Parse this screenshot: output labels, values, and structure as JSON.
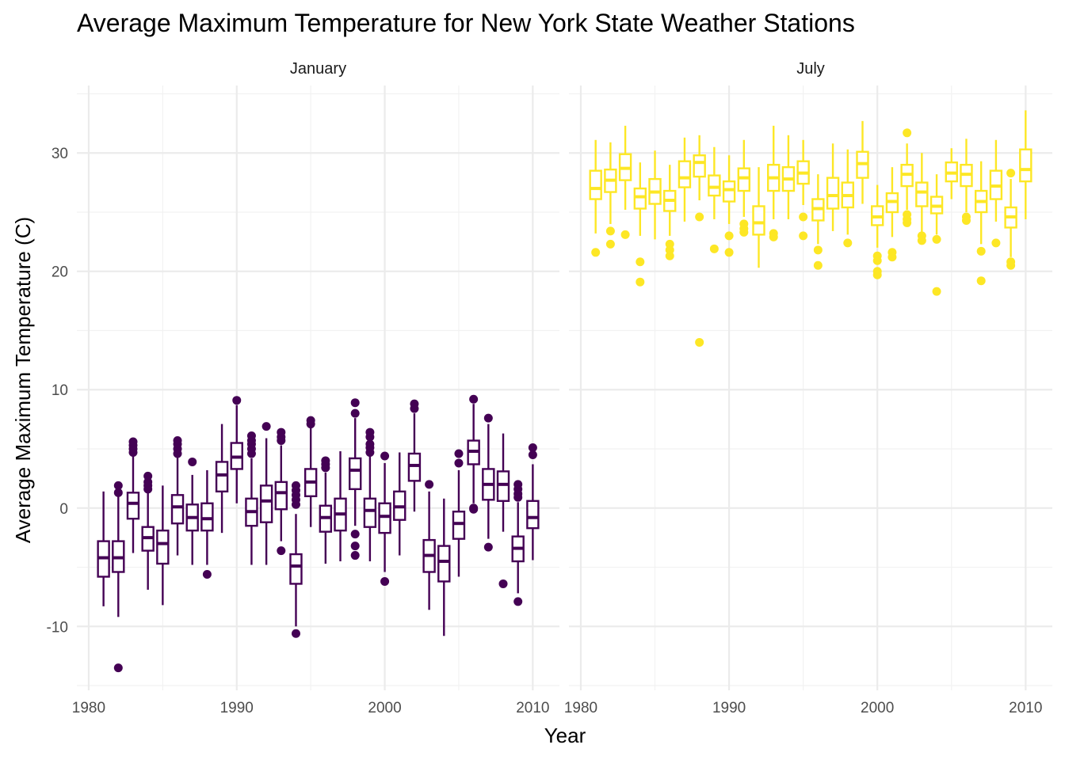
{
  "chart_data": {
    "type": "boxplot",
    "title": "Average Maximum Temperature for New York State Weather Stations",
    "xlabel": "Year",
    "ylabel": "Average Maximum Temperature (C)",
    "xlim": [
      1979.2,
      2011.8
    ],
    "ylim": [
      -15.4,
      35.7
    ],
    "x_ticks": [
      1980,
      1990,
      2000,
      2010
    ],
    "y_ticks": [
      -10,
      0,
      10,
      20,
      30
    ],
    "grid": true,
    "legend": "none",
    "panels": [
      {
        "name": "January",
        "color": "#440154",
        "boxes": [
          {
            "year": 1981,
            "wlo": -8.3,
            "q1": -5.8,
            "med": -4.2,
            "q3": -2.8,
            "whi": 1.4,
            "out": []
          },
          {
            "year": 1982,
            "wlo": -9.2,
            "q1": -5.4,
            "med": -4.2,
            "q3": -2.8,
            "whi": 1.0,
            "out": [
              1.3,
              1.9,
              -13.5
            ]
          },
          {
            "year": 1983,
            "wlo": -3.8,
            "q1": -0.9,
            "med": 0.4,
            "q3": 1.3,
            "whi": 4.4,
            "out": [
              4.7,
              5.0,
              5.3,
              5.6
            ]
          },
          {
            "year": 1984,
            "wlo": -6.9,
            "q1": -3.6,
            "med": -2.5,
            "q3": -1.6,
            "whi": 1.3,
            "out": [
              1.6,
              1.9,
              2.2,
              2.7
            ]
          },
          {
            "year": 1985,
            "wlo": -8.2,
            "q1": -4.7,
            "med": -3.0,
            "q3": -1.9,
            "whi": 1.9,
            "out": []
          },
          {
            "year": 1986,
            "wlo": -4.0,
            "q1": -1.3,
            "med": 0.1,
            "q3": 1.1,
            "whi": 4.3,
            "out": [
              4.6,
              5.0,
              5.4,
              5.7
            ]
          },
          {
            "year": 1987,
            "wlo": -4.8,
            "q1": -1.9,
            "med": -0.8,
            "q3": 0.3,
            "whi": 2.8,
            "out": [
              3.9
            ]
          },
          {
            "year": 1988,
            "wlo": -4.8,
            "q1": -1.9,
            "med": -0.9,
            "q3": 0.4,
            "whi": 3.2,
            "out": [
              -5.6
            ]
          },
          {
            "year": 1989,
            "wlo": -2.1,
            "q1": 1.4,
            "med": 2.8,
            "q3": 3.9,
            "whi": 7.1,
            "out": []
          },
          {
            "year": 1990,
            "wlo": 0.4,
            "q1": 3.3,
            "med": 4.3,
            "q3": 5.5,
            "whi": 8.7,
            "out": [
              9.1
            ]
          },
          {
            "year": 1991,
            "wlo": -4.8,
            "q1": -1.5,
            "med": -0.3,
            "q3": 0.8,
            "whi": 4.2,
            "out": [
              4.6,
              5.0,
              5.4,
              5.7,
              6.1
            ]
          },
          {
            "year": 1992,
            "wlo": -4.8,
            "q1": -1.2,
            "med": 0.6,
            "q3": 1.9,
            "whi": 5.9,
            "out": [
              6.9
            ]
          },
          {
            "year": 1993,
            "wlo": -2.8,
            "q1": -0.1,
            "med": 1.3,
            "q3": 2.2,
            "whi": 5.3,
            "out": [
              5.7,
              6.0,
              6.4,
              -3.6
            ]
          },
          {
            "year": 1994,
            "wlo": -10.0,
            "q1": -6.4,
            "med": -4.9,
            "q3": -3.9,
            "whi": -0.5,
            "out": [
              0.3,
              0.7,
              1.1,
              1.5,
              1.9,
              -10.6
            ]
          },
          {
            "year": 1995,
            "wlo": -1.6,
            "q1": 1.0,
            "med": 2.2,
            "q3": 3.3,
            "whi": 6.8,
            "out": [
              7.1,
              7.4
            ]
          },
          {
            "year": 1996,
            "wlo": -4.7,
            "q1": -2.0,
            "med": -0.8,
            "q3": 0.2,
            "whi": 3.0,
            "out": [
              3.4,
              3.7,
              4.0
            ]
          },
          {
            "year": 1997,
            "wlo": -4.5,
            "q1": -1.9,
            "med": -0.5,
            "q3": 0.8,
            "whi": 4.8,
            "out": []
          },
          {
            "year": 1998,
            "wlo": -1.5,
            "q1": 1.6,
            "med": 3.2,
            "q3": 4.2,
            "whi": 7.6,
            "out": [
              8.0,
              8.9,
              -2.2,
              -3.2,
              -4.0
            ]
          },
          {
            "year": 1999,
            "wlo": -4.5,
            "q1": -1.6,
            "med": -0.2,
            "q3": 0.8,
            "whi": 4.4,
            "out": [
              4.7,
              5.1,
              5.4,
              6.0,
              6.4
            ]
          },
          {
            "year": 2000,
            "wlo": -5.4,
            "q1": -2.1,
            "med": -0.7,
            "q3": 0.4,
            "whi": 3.8,
            "out": [
              4.4,
              -6.2
            ]
          },
          {
            "year": 2001,
            "wlo": -4.0,
            "q1": -1.0,
            "med": 0.1,
            "q3": 1.4,
            "whi": 4.7,
            "out": []
          },
          {
            "year": 2002,
            "wlo": -0.3,
            "q1": 2.3,
            "med": 3.6,
            "q3": 4.6,
            "whi": 8.0,
            "out": [
              8.4,
              8.8
            ]
          },
          {
            "year": 2003,
            "wlo": -8.6,
            "q1": -5.4,
            "med": -4.0,
            "q3": -2.7,
            "whi": 1.4,
            "out": [
              2.0
            ]
          },
          {
            "year": 2004,
            "wlo": -10.8,
            "q1": -6.2,
            "med": -4.5,
            "q3": -3.2,
            "whi": 0.8,
            "out": []
          },
          {
            "year": 2005,
            "wlo": -5.8,
            "q1": -2.6,
            "med": -1.3,
            "q3": -0.3,
            "whi": 3.2,
            "out": [
              3.8,
              4.6
            ]
          },
          {
            "year": 2006,
            "wlo": 0.4,
            "q1": 3.7,
            "med": 4.8,
            "q3": 5.7,
            "whi": 8.8,
            "out": [
              9.2,
              0.0,
              -0.1
            ]
          },
          {
            "year": 2007,
            "wlo": -2.6,
            "q1": 0.7,
            "med": 2.0,
            "q3": 3.3,
            "whi": 7.1,
            "out": [
              7.6,
              -3.3
            ]
          },
          {
            "year": 2008,
            "wlo": -2.0,
            "q1": 0.6,
            "med": 2.0,
            "q3": 3.1,
            "whi": 6.3,
            "out": [
              -6.4
            ]
          },
          {
            "year": 2009,
            "wlo": -7.2,
            "q1": -4.5,
            "med": -3.4,
            "q3": -2.4,
            "whi": 0.5,
            "out": [
              0.9,
              1.2,
              1.6,
              2.0,
              -7.9
            ]
          },
          {
            "year": 2010,
            "wlo": -4.4,
            "q1": -1.7,
            "med": -0.8,
            "q3": 0.6,
            "whi": 3.7,
            "out": [
              4.5,
              5.1
            ]
          }
        ]
      },
      {
        "name": "July",
        "color": "#fde725",
        "boxes": [
          {
            "year": 1981,
            "wlo": 23.2,
            "q1": 26.1,
            "med": 27.0,
            "q3": 28.5,
            "whi": 31.1,
            "out": [
              21.6
            ]
          },
          {
            "year": 1982,
            "wlo": 24.0,
            "q1": 26.7,
            "med": 27.7,
            "q3": 28.6,
            "whi": 30.9,
            "out": [
              23.4,
              22.3
            ]
          },
          {
            "year": 1983,
            "wlo": 25.2,
            "q1": 27.7,
            "med": 28.7,
            "q3": 29.9,
            "whi": 32.3,
            "out": [
              23.1
            ]
          },
          {
            "year": 1984,
            "wlo": 23.0,
            "q1": 25.3,
            "med": 26.3,
            "q3": 27.0,
            "whi": 29.2,
            "out": [
              20.8,
              19.1
            ]
          },
          {
            "year": 1985,
            "wlo": 22.7,
            "q1": 25.7,
            "med": 26.7,
            "q3": 27.8,
            "whi": 30.2,
            "out": []
          },
          {
            "year": 1986,
            "wlo": 23.0,
            "q1": 25.1,
            "med": 26.0,
            "q3": 26.8,
            "whi": 29.0,
            "out": [
              22.3,
              21.8,
              21.3
            ]
          },
          {
            "year": 1987,
            "wlo": 24.2,
            "q1": 27.1,
            "med": 27.9,
            "q3": 29.3,
            "whi": 31.3,
            "out": []
          },
          {
            "year": 1988,
            "wlo": 26.0,
            "q1": 28.0,
            "med": 29.2,
            "q3": 29.8,
            "whi": 31.5,
            "out": [
              24.6,
              14.0
            ]
          },
          {
            "year": 1989,
            "wlo": 24.4,
            "q1": 26.4,
            "med": 27.1,
            "q3": 28.1,
            "whi": 30.5,
            "out": [
              21.9
            ]
          },
          {
            "year": 1990,
            "wlo": 24.0,
            "q1": 25.9,
            "med": 26.9,
            "q3": 27.6,
            "whi": 29.8,
            "out": [
              23.0,
              21.6
            ]
          },
          {
            "year": 1991,
            "wlo": 24.6,
            "q1": 26.8,
            "med": 27.9,
            "q3": 28.7,
            "whi": 31.1,
            "out": [
              24.0,
              23.6,
              23.3
            ]
          },
          {
            "year": 1992,
            "wlo": 20.3,
            "q1": 23.1,
            "med": 24.1,
            "q3": 25.5,
            "whi": 28.8,
            "out": []
          },
          {
            "year": 1993,
            "wlo": 24.4,
            "q1": 26.8,
            "med": 27.9,
            "q3": 29.0,
            "whi": 32.3,
            "out": [
              23.2,
              22.9
            ]
          },
          {
            "year": 1994,
            "wlo": 24.4,
            "q1": 26.8,
            "med": 27.8,
            "q3": 28.8,
            "whi": 31.5,
            "out": []
          },
          {
            "year": 1995,
            "wlo": 25.6,
            "q1": 27.4,
            "med": 28.3,
            "q3": 29.3,
            "whi": 31.1,
            "out": [
              24.6,
              23.0
            ]
          },
          {
            "year": 1996,
            "wlo": 22.3,
            "q1": 24.3,
            "med": 25.3,
            "q3": 26.1,
            "whi": 28.2,
            "out": [
              21.8,
              20.5
            ]
          },
          {
            "year": 1997,
            "wlo": 23.4,
            "q1": 25.3,
            "med": 26.4,
            "q3": 27.9,
            "whi": 30.8,
            "out": []
          },
          {
            "year": 1998,
            "wlo": 23.1,
            "q1": 25.4,
            "med": 26.4,
            "q3": 27.5,
            "whi": 30.3,
            "out": [
              22.4
            ]
          },
          {
            "year": 1999,
            "wlo": 25.7,
            "q1": 27.9,
            "med": 29.1,
            "q3": 30.1,
            "whi": 32.7,
            "out": []
          },
          {
            "year": 2000,
            "wlo": 22.0,
            "q1": 23.9,
            "med": 24.6,
            "q3": 25.5,
            "whi": 27.3,
            "out": [
              21.3,
              20.9,
              20.0,
              19.7
            ]
          },
          {
            "year": 2001,
            "wlo": 22.9,
            "q1": 25.0,
            "med": 25.9,
            "q3": 26.6,
            "whi": 28.8,
            "out": [
              21.6,
              21.2
            ]
          },
          {
            "year": 2002,
            "wlo": 25.2,
            "q1": 27.2,
            "med": 28.2,
            "q3": 29.0,
            "whi": 30.8,
            "out": [
              31.7,
              24.8,
              24.4,
              24.1
            ]
          },
          {
            "year": 2003,
            "wlo": 23.2,
            "q1": 25.5,
            "med": 26.7,
            "q3": 27.5,
            "whi": 30.0,
            "out": [
              23.0,
              22.6
            ]
          },
          {
            "year": 2004,
            "wlo": 23.1,
            "q1": 24.9,
            "med": 25.5,
            "q3": 26.3,
            "whi": 28.2,
            "out": [
              22.7,
              18.3
            ]
          },
          {
            "year": 2005,
            "wlo": 26.1,
            "q1": 27.6,
            "med": 28.3,
            "q3": 29.2,
            "whi": 30.4,
            "out": []
          },
          {
            "year": 2006,
            "wlo": 25.0,
            "q1": 27.2,
            "med": 28.2,
            "q3": 29.0,
            "whi": 31.2,
            "out": [
              24.6,
              24.3
            ]
          },
          {
            "year": 2007,
            "wlo": 22.3,
            "q1": 25.0,
            "med": 25.9,
            "q3": 26.8,
            "whi": 29.3,
            "out": [
              21.7,
              19.2
            ]
          },
          {
            "year": 2008,
            "wlo": 24.2,
            "q1": 26.1,
            "med": 27.2,
            "q3": 28.5,
            "whi": 31.1,
            "out": [
              22.4
            ]
          },
          {
            "year": 2009,
            "wlo": 21.2,
            "q1": 23.7,
            "med": 24.6,
            "q3": 25.4,
            "whi": 27.8,
            "out": [
              28.3,
              20.8,
              20.5
            ]
          },
          {
            "year": 2010,
            "wlo": 24.4,
            "q1": 27.6,
            "med": 28.6,
            "q3": 30.3,
            "whi": 33.6,
            "out": []
          }
        ]
      }
    ]
  }
}
